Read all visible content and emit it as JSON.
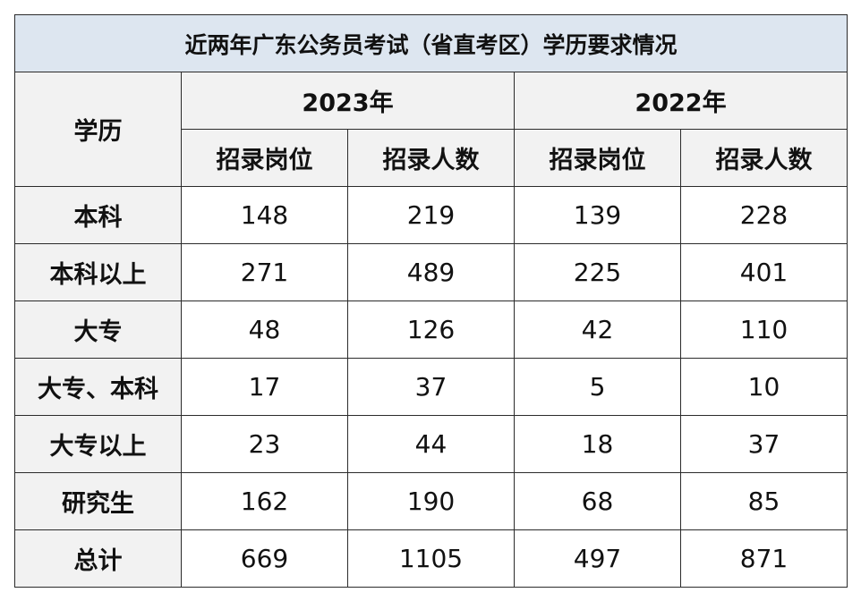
{
  "chart_data": {
    "type": "table",
    "title": "近两年广东公务员考试（省直考区）学历要求情况",
    "row_header_label": "学历",
    "years": [
      "2023年",
      "2022年"
    ],
    "sub_columns": [
      "招录岗位",
      "招录人数"
    ],
    "rows": [
      {
        "label": "本科",
        "values": [
          "148",
          "219",
          "139",
          "228"
        ]
      },
      {
        "label": "本科以上",
        "values": [
          "271",
          "489",
          "225",
          "401"
        ]
      },
      {
        "label": "大专",
        "values": [
          "48",
          "126",
          "42",
          "110"
        ]
      },
      {
        "label": "大专、本科",
        "values": [
          "17",
          "37",
          "5",
          "10"
        ]
      },
      {
        "label": "大专以上",
        "values": [
          "23",
          "44",
          "18",
          "37"
        ]
      },
      {
        "label": "研究生",
        "values": [
          "162",
          "190",
          "68",
          "85"
        ]
      },
      {
        "label": "总计",
        "values": [
          "669",
          "1105",
          "497",
          "871"
        ]
      }
    ]
  },
  "colors": {
    "title_bg": "#dde6f0",
    "header_bg": "#f2f2f2",
    "cell_bg": "#ffffff",
    "border": "#2b2b2b"
  }
}
